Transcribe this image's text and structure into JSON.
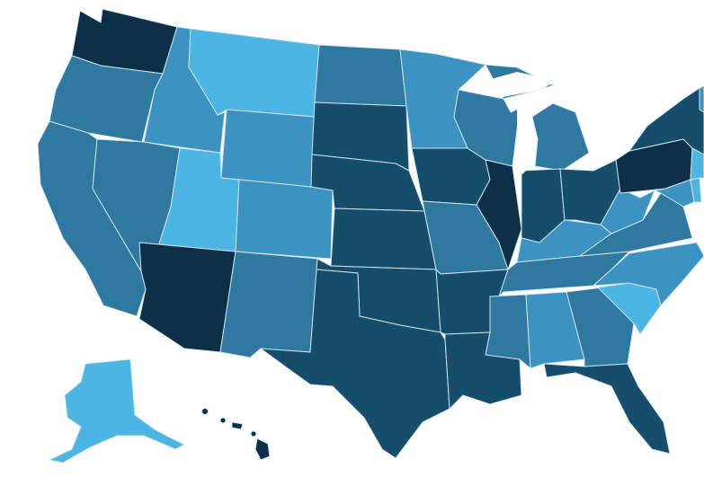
{
  "map": {
    "type": "choropleth",
    "region": "United States",
    "scale": {
      "1": "#0d2f48",
      "2": "#154d6b",
      "3": "#2f78a0",
      "4": "#3c93c2",
      "5": "#4db5e3"
    },
    "states": [
      {
        "id": "WA",
        "level": 1
      },
      {
        "id": "OR",
        "level": 3
      },
      {
        "id": "CA",
        "level": 3
      },
      {
        "id": "ID",
        "level": 4
      },
      {
        "id": "NV",
        "level": 3
      },
      {
        "id": "MT",
        "level": 5
      },
      {
        "id": "WY",
        "level": 4
      },
      {
        "id": "UT",
        "level": 5
      },
      {
        "id": "CO",
        "level": 4
      },
      {
        "id": "AZ",
        "level": 1
      },
      {
        "id": "NM",
        "level": 3
      },
      {
        "id": "ND",
        "level": 3
      },
      {
        "id": "SD",
        "level": 2
      },
      {
        "id": "NE",
        "level": 2
      },
      {
        "id": "KS",
        "level": 2
      },
      {
        "id": "OK",
        "level": 2
      },
      {
        "id": "TX",
        "level": 2
      },
      {
        "id": "MN",
        "level": 4
      },
      {
        "id": "IA",
        "level": 2
      },
      {
        "id": "MO",
        "level": 3
      },
      {
        "id": "AR",
        "level": 2
      },
      {
        "id": "LA",
        "level": 2
      },
      {
        "id": "WI",
        "level": 3
      },
      {
        "id": "IL",
        "level": 1
      },
      {
        "id": "MI",
        "level": 3
      },
      {
        "id": "IN",
        "level": 2
      },
      {
        "id": "OH",
        "level": 2
      },
      {
        "id": "KY",
        "level": 4
      },
      {
        "id": "TN",
        "level": 3
      },
      {
        "id": "MS",
        "level": 3
      },
      {
        "id": "AL",
        "level": 4
      },
      {
        "id": "GA",
        "level": 3
      },
      {
        "id": "FL",
        "level": 2
      },
      {
        "id": "SC",
        "level": 5
      },
      {
        "id": "NC",
        "level": 4
      },
      {
        "id": "VA",
        "level": 3
      },
      {
        "id": "WV",
        "level": 4
      },
      {
        "id": "PA",
        "level": 1
      },
      {
        "id": "NY",
        "level": 2
      },
      {
        "id": "MD",
        "level": 4
      },
      {
        "id": "DE",
        "level": 5
      },
      {
        "id": "NJ",
        "level": 5
      },
      {
        "id": "VT",
        "level": 4
      },
      {
        "id": "AK",
        "level": 5
      },
      {
        "id": "HI",
        "level": 1
      }
    ]
  }
}
